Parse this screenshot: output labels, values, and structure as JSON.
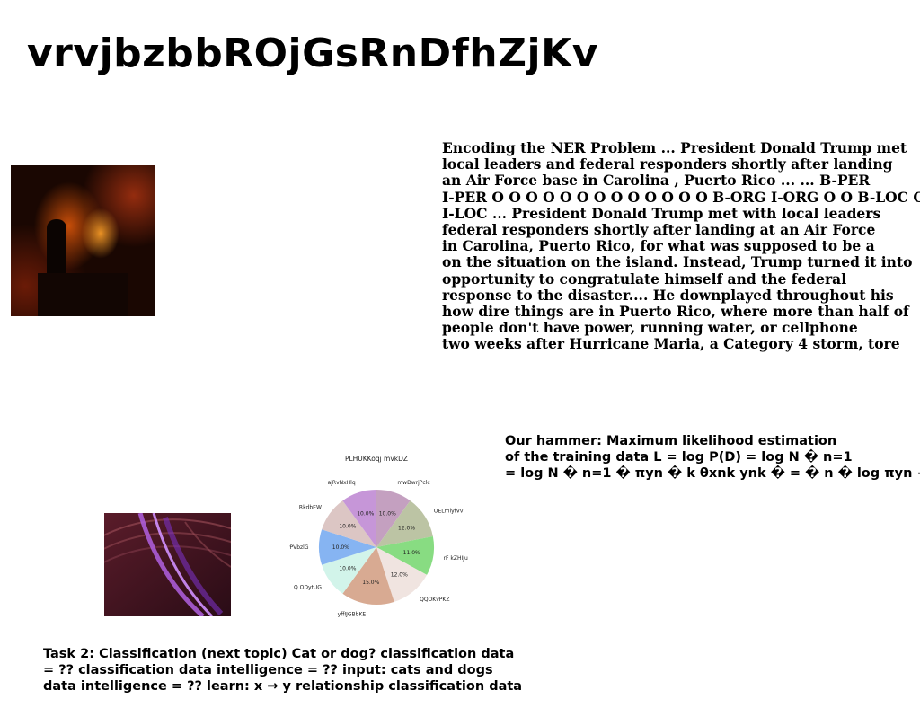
{
  "title": "vrvjbzbbROjGsRnDfhZjKv",
  "ner_text": [
    "Encoding the NER Problem ... President Donald Trump met",
    "local leaders and federal responders shortly after landing",
    "an Air Force base in Carolina , Puerto Rico ... ... B-PER",
    "I-PER O O O O O O O O O O O O O B-ORG I-ORG O O B-LOC O",
    "I-LOC ... President Donald Trump met with local leaders",
    "federal responders shortly after landing at an Air Force",
    "in Carolina, Puerto Rico, for what was supposed to be a",
    "on the situation on the island. Instead, Trump turned it into",
    "opportunity to congratulate himself and the federal",
    "response to the disaster.... He downplayed throughout his",
    "how dire things are in Puerto Rico, where more than half of",
    "people don't have power, running water, or cellphone",
    "two weeks after Hurricane Maria, a Category 4 storm, tore"
  ],
  "mle_text": [
    "Our hammer: Maximum likelihood estimation",
    "of the training data L = log P(D) = log N � n=1",
    "= log N � n=1 � πyn � k θxnk ynk � = � n � log πyn + �"
  ],
  "task_text": [
    "Task 2: Classification (next topic) Cat or dog? classification data",
    "= ?? classification data intelligence = ?? input: cats and dogs",
    "data intelligence = ?? learn: x → y relationship classification data"
  ],
  "chart_data": {
    "type": "pie",
    "title": "PLHUKKoqj mvkDZ",
    "slices": [
      {
        "label": "mwDwrjPclc",
        "value": 10.0,
        "pct_label": "10.0%",
        "color": "#c4a0c0"
      },
      {
        "label": "OELmlyfVv",
        "value": 12.0,
        "pct_label": "12.0%",
        "color": "#bcc4a4"
      },
      {
        "label": "rF kZHIJu",
        "value": 11.0,
        "pct_label": "11.0%",
        "color": "#88dc82"
      },
      {
        "label": "QQOKvPKZ",
        "value": 12.0,
        "pct_label": "12.0%",
        "color": "#f0e4e0"
      },
      {
        "label": "yffIJGBbKE",
        "value": 15.0,
        "pct_label": "15.0%",
        "color": "#d8aa92"
      },
      {
        "label": "Q ODytUG",
        "value": 10.0,
        "pct_label": "10.0%",
        "color": "#d2f4ea"
      },
      {
        "label": "PPVbzlG",
        "value": 10.0,
        "pct_label": "10.0%",
        "color": "#86b4f2"
      },
      {
        "label": "RkdbEW",
        "value": 10.0,
        "pct_label": "10.0%",
        "color": "#dcc6c4"
      },
      {
        "label": "ajRvNxHlq",
        "value": 10.0,
        "pct_label": "10.0%",
        "color": "#c696d8"
      }
    ]
  }
}
